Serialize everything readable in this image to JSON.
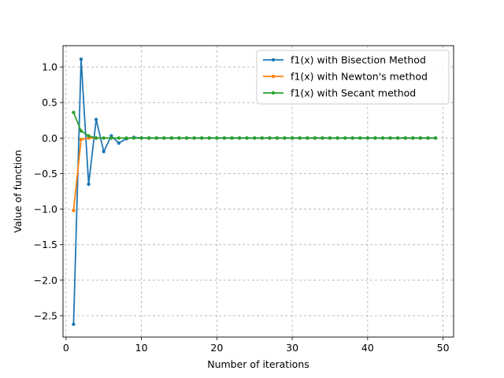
{
  "chart_data": {
    "type": "line",
    "title": "",
    "xlabel": "Number of iterations",
    "ylabel": "Value of function",
    "xlim": [
      -0.4,
      51.4
    ],
    "ylim": [
      -2.8,
      1.3
    ],
    "xticks": [
      0,
      10,
      20,
      30,
      40,
      50
    ],
    "yticks": [
      -2.5,
      -2.0,
      -1.5,
      -1.0,
      -0.5,
      0.0,
      0.5,
      1.0
    ],
    "xtick_labels": [
      "0",
      "10",
      "20",
      "30",
      "40",
      "50"
    ],
    "ytick_labels": [
      "−2.5",
      "−2.0",
      "−1.5",
      "−1.0",
      "−0.5",
      "0.0",
      "0.5",
      "1.0"
    ],
    "grid": true,
    "grid_style": "dashed",
    "legend_position": "top-right",
    "series": [
      {
        "name": "f1(x) with Bisection Method",
        "color": "#1f77b4",
        "x": [
          1,
          2,
          3,
          4,
          5,
          6,
          7,
          8,
          9,
          10,
          11,
          12,
          13,
          14,
          15,
          16,
          17,
          18,
          19,
          20,
          21,
          22,
          23,
          24,
          25,
          26,
          27,
          28,
          29,
          30,
          31,
          32,
          33,
          34,
          35,
          36,
          37,
          38,
          39,
          40,
          41,
          42,
          43,
          44,
          45,
          46,
          47,
          48,
          49
        ],
        "y": [
          -2.62,
          1.11,
          -0.65,
          0.26,
          -0.19,
          0.03,
          -0.07,
          -0.01,
          0.01,
          0,
          0,
          0,
          0,
          0,
          0,
          0,
          0,
          0,
          0,
          0,
          0,
          0,
          0,
          0,
          0,
          0,
          0,
          0,
          0,
          0,
          0,
          0,
          0,
          0,
          0,
          0,
          0,
          0,
          0,
          0,
          0,
          0,
          0,
          0,
          0,
          0,
          0,
          0,
          0
        ]
      },
      {
        "name": "f1(x) with Newton's method",
        "color": "#ff7f0e",
        "x": [
          1,
          2,
          3,
          4
        ],
        "y": [
          -1.02,
          -0.02,
          0.0,
          0.0
        ]
      },
      {
        "name": "f1(x) with Secant method",
        "color": "#2ca02c",
        "x": [
          1,
          2,
          3,
          4,
          5,
          6,
          7,
          8,
          9,
          10,
          11,
          12,
          13,
          14,
          15,
          16,
          17,
          18,
          19,
          20,
          21,
          22,
          23,
          24,
          25,
          26,
          27,
          28,
          29,
          30,
          31,
          32,
          33,
          34,
          35,
          36,
          37,
          38,
          39,
          40,
          41,
          42,
          43,
          44,
          45,
          46,
          47,
          48,
          49
        ],
        "y": [
          0.36,
          0.1,
          0.03,
          0.0,
          0,
          0,
          0,
          0,
          0,
          0,
          0,
          0,
          0,
          0,
          0,
          0,
          0,
          0,
          0,
          0,
          0,
          0,
          0,
          0,
          0,
          0,
          0,
          0,
          0,
          0,
          0,
          0,
          0,
          0,
          0,
          0,
          0,
          0,
          0,
          0,
          0,
          0,
          0,
          0,
          0,
          0,
          0,
          0,
          0
        ]
      }
    ]
  }
}
